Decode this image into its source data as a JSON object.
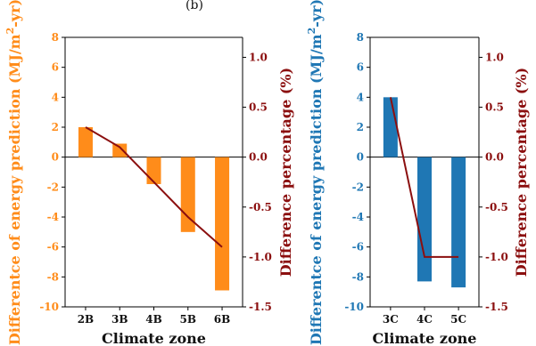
{
  "panel_label": "(b)",
  "chart_data": [
    {
      "type": "bar",
      "categories": [
        "2B",
        "3B",
        "4B",
        "5B",
        "6B"
      ],
      "xlabel": "Climate zone",
      "ylabel": "Differentce of energy prediction (MJ/m²-yr)",
      "ylim": [
        -10,
        8
      ],
      "yticks": [
        -10,
        -8,
        -6,
        -4,
        -2,
        0,
        2,
        4,
        6,
        8
      ],
      "bar_color": "#ff8c1a",
      "series": [
        {
          "axis": "left",
          "values": [
            2.0,
            0.9,
            -1.8,
            -5.0,
            -8.9
          ]
        },
        {
          "axis": "right",
          "type": "line",
          "color": "#8b0f0f",
          "values": [
            0.3,
            0.1,
            -0.25,
            -0.6,
            -0.9
          ]
        }
      ],
      "y2label": "Difference percentage (%)",
      "y2lim": [
        -1.5,
        1.2
      ],
      "y2ticks": [
        -1.5,
        -1.0,
        -0.5,
        0.0,
        0.5,
        1.0
      ],
      "left_axis_color": "#ff8c1a",
      "right_axis_color": "#8b0f0f"
    },
    {
      "type": "bar",
      "categories": [
        "3C",
        "4C",
        "5C"
      ],
      "xlabel": "Climate zone",
      "ylabel": "Differentce of energy prediction (MJ/m²-yr)",
      "ylim": [
        -10,
        8
      ],
      "yticks": [
        -10,
        -8,
        -6,
        -4,
        -2,
        0,
        2,
        4,
        6,
        8
      ],
      "bar_color": "#1f77b4",
      "series": [
        {
          "axis": "left",
          "values": [
            4.0,
            -8.3,
            -8.7
          ]
        },
        {
          "axis": "right",
          "type": "line",
          "color": "#8b0f0f",
          "values": [
            0.6,
            -1.0,
            -1.0
          ]
        }
      ],
      "y2label": "Difference percentage (%)",
      "y2lim": [
        -1.5,
        1.2
      ],
      "y2ticks": [
        -1.5,
        -1.0,
        -0.5,
        0.0,
        0.5,
        1.0
      ],
      "left_axis_color": "#1f77b4",
      "right_axis_color": "#8b0f0f"
    }
  ]
}
